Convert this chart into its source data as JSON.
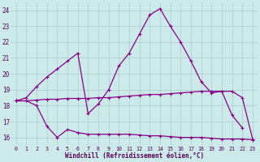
{
  "xlabel": "Windchill (Refroidissement éolien,°C)",
  "background_color": "#cdeaea",
  "grid_color": "#aacece",
  "line_color": "#880088",
  "x_values": [
    0,
    1,
    2,
    3,
    4,
    5,
    6,
    7,
    8,
    9,
    10,
    11,
    12,
    13,
    14,
    15,
    16,
    17,
    18,
    19,
    20,
    21,
    22,
    23
  ],
  "line1_y": [
    18.3,
    18.5,
    19.2,
    19.8,
    20.3,
    20.8,
    21.3,
    17.5,
    18.1,
    19.0,
    20.5,
    21.3,
    22.5,
    23.7,
    24.1,
    23.0,
    22.0,
    20.8,
    19.5,
    18.8,
    18.9,
    17.4,
    16.6,
    null
  ],
  "line2_y": [
    18.3,
    18.3,
    18.35,
    18.4,
    18.4,
    18.45,
    18.45,
    18.45,
    18.5,
    18.5,
    18.55,
    18.6,
    18.65,
    18.7,
    18.7,
    18.75,
    18.8,
    18.85,
    18.9,
    18.9,
    18.9,
    18.9,
    18.5,
    15.9
  ],
  "line3_y": [
    18.3,
    18.3,
    18.0,
    16.7,
    16.0,
    16.5,
    16.3,
    16.2,
    16.2,
    16.2,
    16.2,
    16.2,
    16.15,
    16.1,
    16.1,
    16.05,
    16.0,
    16.0,
    16.0,
    15.95,
    15.9,
    15.9,
    15.9,
    15.85
  ],
  "ylim": [
    15.5,
    24.5
  ],
  "yticks": [
    16,
    17,
    18,
    19,
    20,
    21,
    22,
    23,
    24
  ],
  "xticks": [
    0,
    1,
    2,
    3,
    4,
    5,
    6,
    7,
    8,
    9,
    10,
    11,
    12,
    13,
    14,
    15,
    16,
    17,
    18,
    19,
    20,
    21,
    22,
    23
  ]
}
